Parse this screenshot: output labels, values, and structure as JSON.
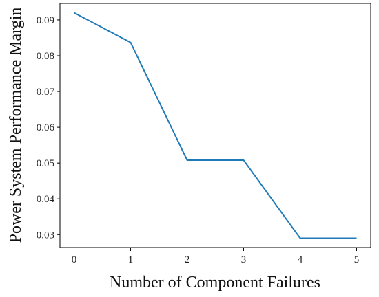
{
  "chart_data": {
    "type": "line",
    "xlabel": "Number of Component Failures",
    "ylabel": "Power System Performance Margin",
    "x": [
      0,
      1,
      2,
      3,
      4,
      5
    ],
    "series": [
      {
        "values": [
          0.092,
          0.0837,
          0.0508,
          0.0508,
          0.029,
          0.029
        ],
        "color": "#1f7ab8"
      }
    ],
    "xlim": [
      -0.25,
      5.25
    ],
    "ylim": [
      0.0264,
      0.0946
    ],
    "xticks": [
      "0",
      "1",
      "2",
      "3",
      "4",
      "5"
    ],
    "yticks": [
      "0.03",
      "0.04",
      "0.05",
      "0.06",
      "0.07",
      "0.08",
      "0.09"
    ],
    "grid": false
  }
}
